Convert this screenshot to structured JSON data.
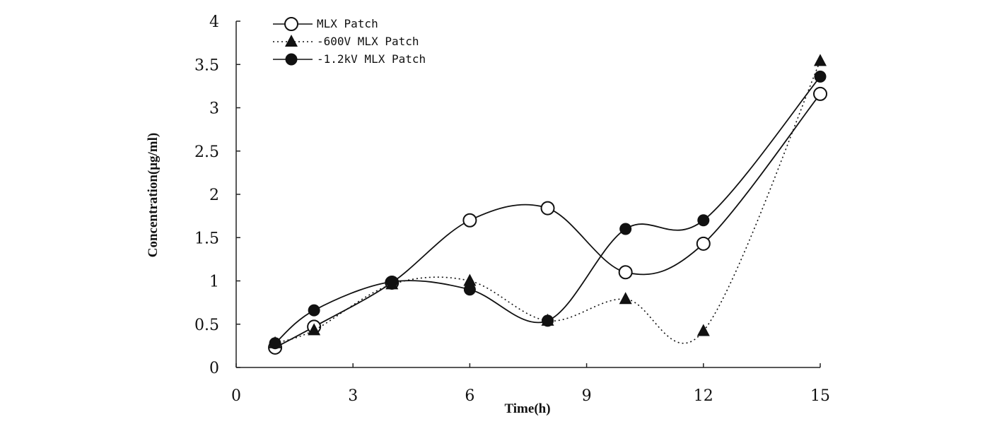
{
  "chart_data": {
    "type": "line",
    "title": "",
    "xlabel": "Time",
    "xlabel_unit": "(h)",
    "ylabel": "Concentration(μg/ml)",
    "xlim": [
      0,
      15
    ],
    "ylim": [
      0,
      4
    ],
    "x_ticks": [
      0,
      3,
      6,
      9,
      12,
      15
    ],
    "x_tick_labels": [
      "0",
      "3",
      "6",
      "9",
      "12",
      "15"
    ],
    "y_ticks": [
      0,
      0.5,
      1,
      1.5,
      2,
      2.5,
      3,
      3.5,
      4
    ],
    "y_tick_labels": [
      "0",
      "0.5",
      "1",
      "1.5",
      "2",
      "2.5",
      "3",
      "3.5",
      "4"
    ],
    "grid": false,
    "legend_position": "top-left",
    "series": [
      {
        "name": "MLX Patch",
        "marker": "open-circle",
        "line": "solid",
        "x": [
          1,
          2,
          4,
          6,
          8,
          10,
          12,
          15
        ],
        "y": [
          0.23,
          0.47,
          0.98,
          1.7,
          1.84,
          1.1,
          1.43,
          3.16
        ]
      },
      {
        "name": "-600V MLX Patch",
        "marker": "filled-triangle",
        "line": "dotted",
        "x": [
          1,
          2,
          4,
          6,
          8,
          10,
          12,
          15
        ],
        "y": [
          0.28,
          0.43,
          0.96,
          1.0,
          0.54,
          0.79,
          0.42,
          3.54
        ]
      },
      {
        "name": "-1.2kV MLX Patch",
        "marker": "filled-circle",
        "line": "solid",
        "x": [
          1,
          2,
          4,
          6,
          8,
          10,
          12,
          15
        ],
        "y": [
          0.28,
          0.66,
          0.99,
          0.9,
          0.54,
          1.6,
          1.7,
          3.36
        ]
      }
    ]
  }
}
